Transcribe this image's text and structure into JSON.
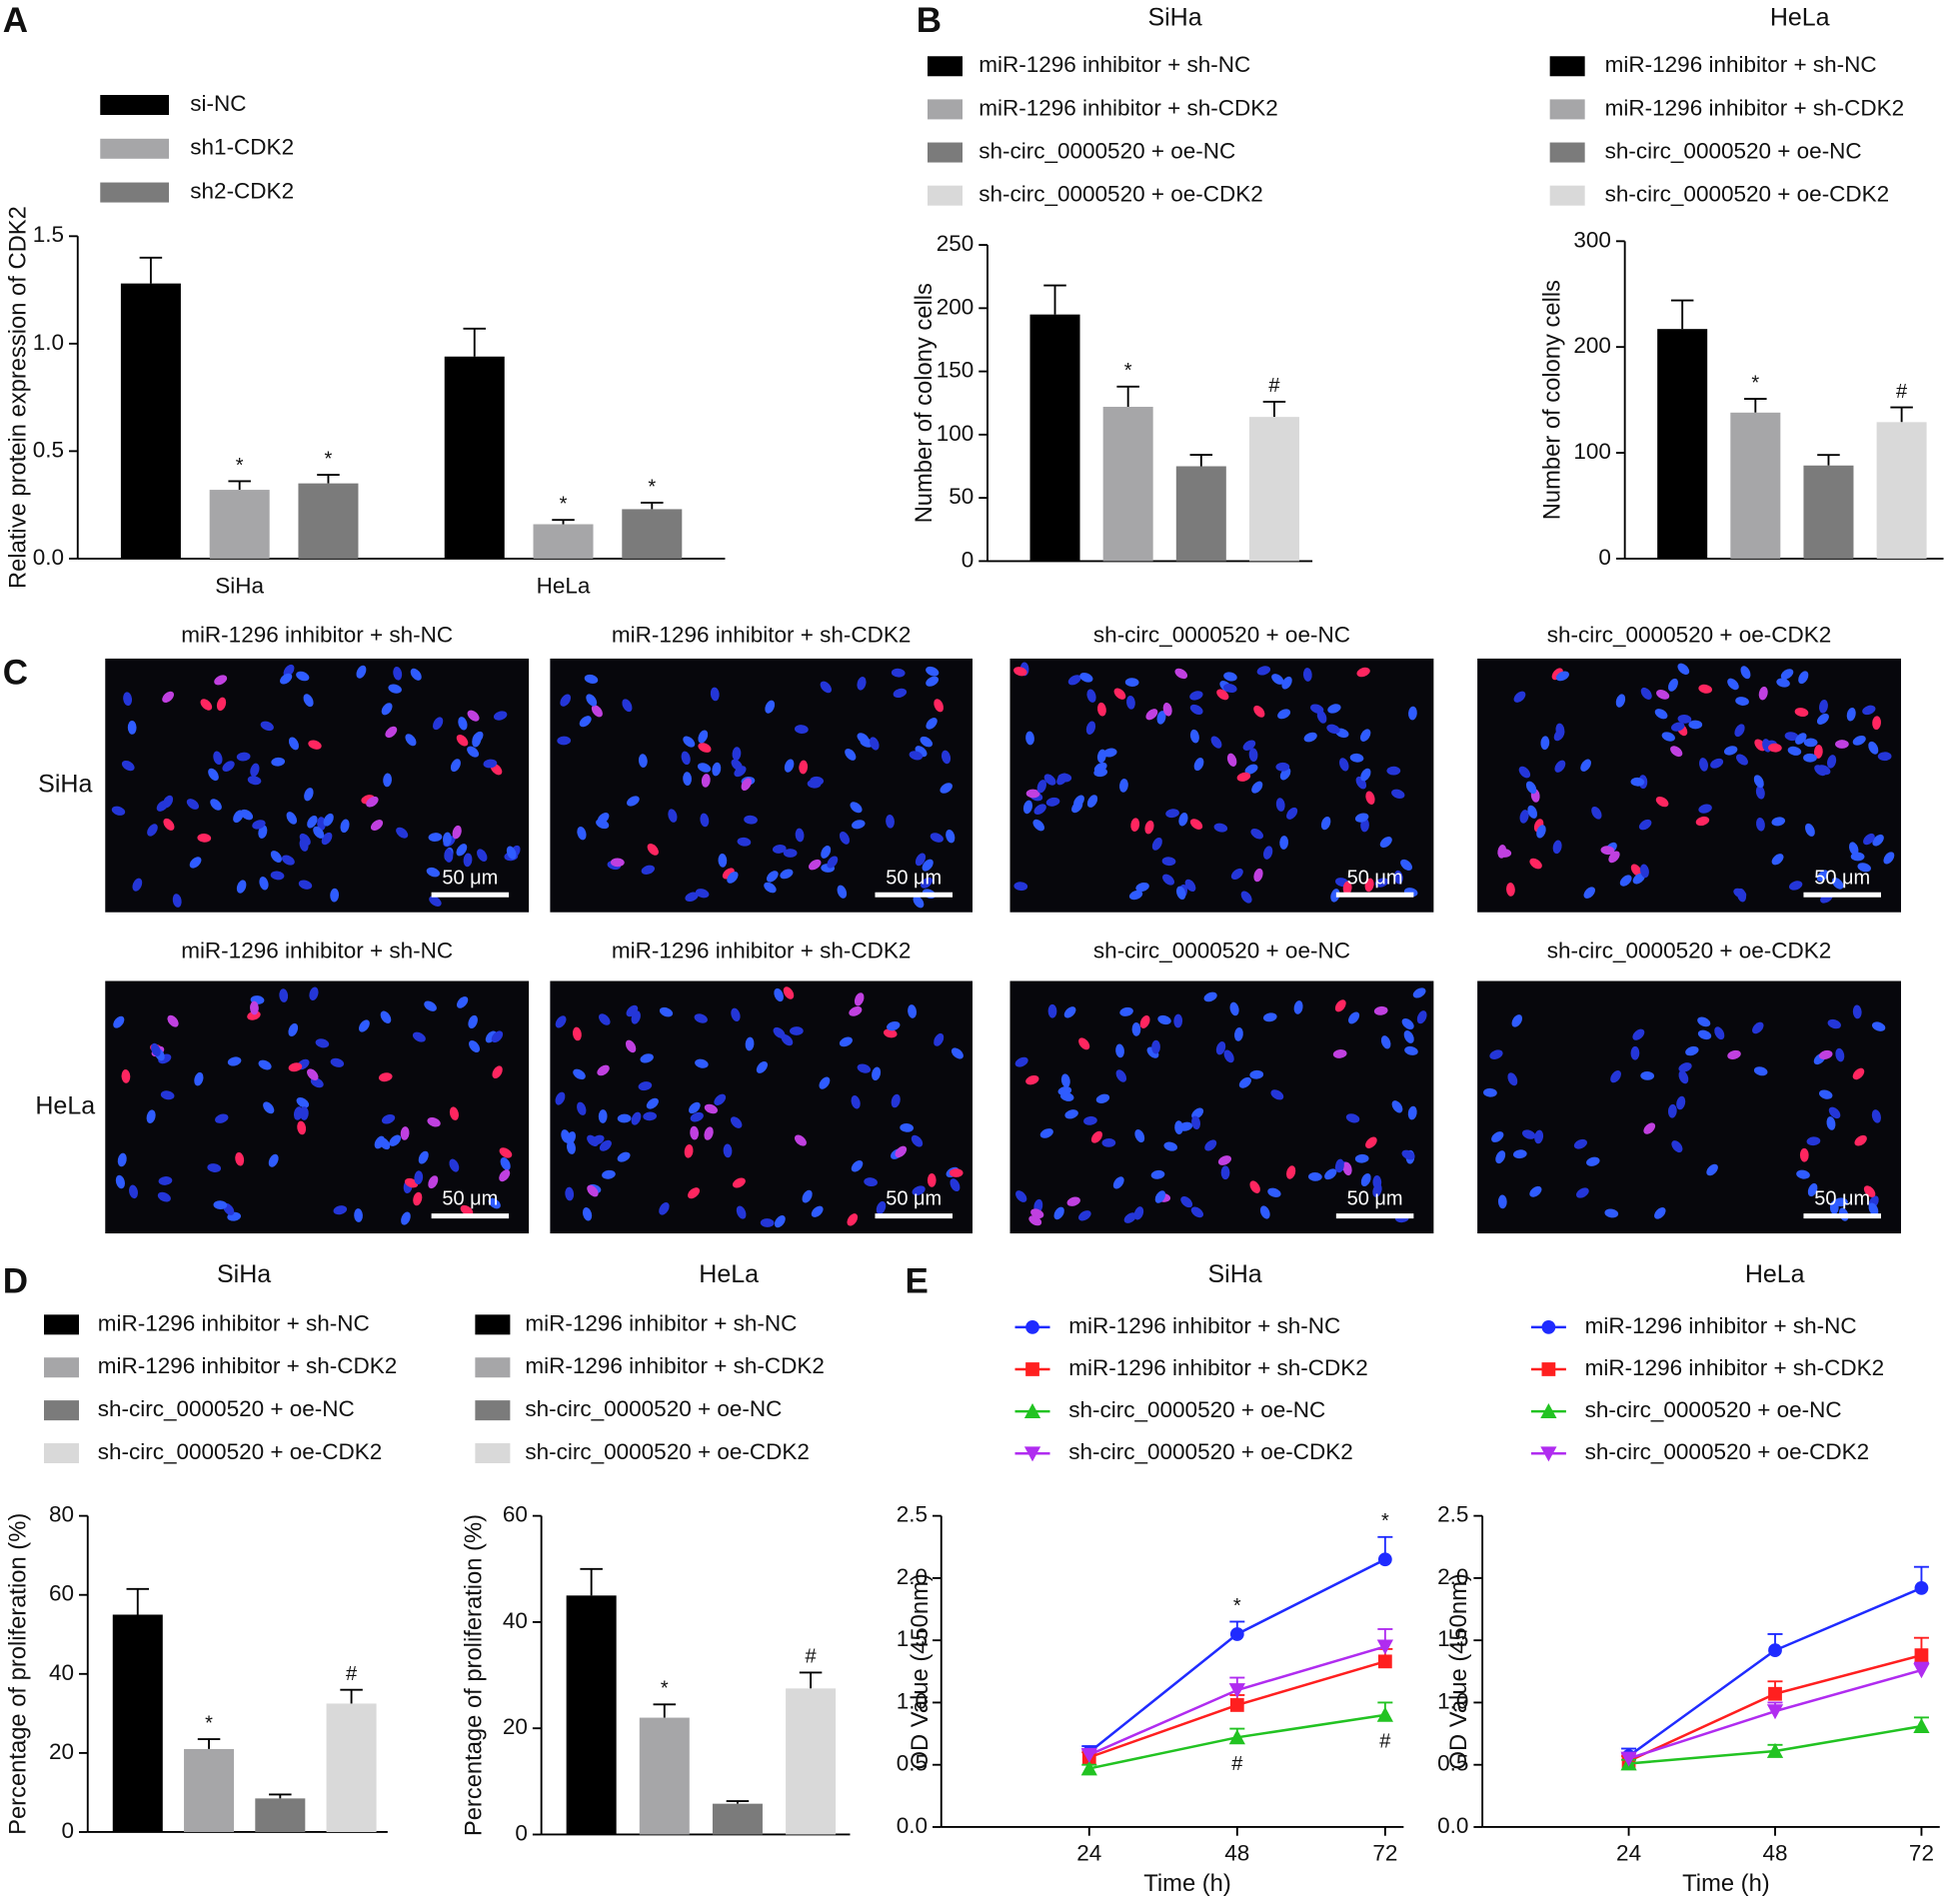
{
  "figure": {
    "panel_labels": [
      "A",
      "B",
      "C",
      "D",
      "E"
    ],
    "micrographs": {
      "columns": [
        "miR-1296 inhibitor + sh-NC",
        "miR-1296 inhibitor + sh-CDK2",
        "sh-circ_0000520 + oe-NC",
        "sh-circ_0000520 + oe-CDK2"
      ],
      "rows": [
        "SiHa",
        "HeLa"
      ],
      "scale_bar": "50 μm"
    }
  },
  "chart_data": [
    {
      "type": "bar",
      "ylabel": "Relative protein expression of CDK2",
      "categories": [
        "SiHa",
        "HeLa"
      ],
      "series": [
        {
          "name": "si-NC",
          "color": "#000000",
          "values": [
            1.28,
            0.94
          ],
          "errors": [
            0.12,
            0.13
          ]
        },
        {
          "name": "sh1-CDK2",
          "color": "#a6a6a8",
          "values": [
            0.32,
            0.16
          ],
          "errors": [
            0.04,
            0.02
          ],
          "marks": [
            "*",
            "*"
          ]
        },
        {
          "name": "sh2-CDK2",
          "color": "#7b7b7b",
          "values": [
            0.35,
            0.23
          ],
          "errors": [
            0.04,
            0.03
          ],
          "marks": [
            "*",
            "*"
          ]
        }
      ],
      "ylim": [
        0,
        1.5
      ],
      "yticks": [
        {
          "value": 0,
          "label": "0.0"
        },
        0.5,
        {
          "value": 1,
          "label": "1.0"
        },
        1.5
      ]
    },
    {
      "type": "bar",
      "title": "SiHa",
      "ylabel": "Number of colony cells",
      "series": [
        {
          "name": "miR-1296 inhibitor + sh-NC",
          "color": "#000000",
          "values": [
            195
          ],
          "errors": [
            23
          ]
        },
        {
          "name": "miR-1296 inhibitor + sh-CDK2",
          "color": "#a6a6a8",
          "values": [
            122
          ],
          "errors": [
            16
          ],
          "marks": [
            "*"
          ]
        },
        {
          "name": "sh-circ_0000520 + oe-NC",
          "color": "#7b7b7b",
          "values": [
            75
          ],
          "errors": [
            9
          ]
        },
        {
          "name": "sh-circ_0000520 + oe-CDK2",
          "color": "#d9d9d9",
          "values": [
            114
          ],
          "errors": [
            12
          ],
          "marks": [
            "#"
          ]
        }
      ],
      "ylim": [
        0,
        250
      ],
      "yticks": [
        0,
        50,
        100,
        150,
        200,
        250
      ]
    },
    {
      "type": "bar",
      "title": "HeLa",
      "ylabel": "Number of colony cells",
      "series": [
        {
          "name": "miR-1296 inhibitor + sh-NC",
          "color": "#000000",
          "values": [
            217
          ],
          "errors": [
            27
          ]
        },
        {
          "name": "miR-1296 inhibitor + sh-CDK2",
          "color": "#a6a6a8",
          "values": [
            138
          ],
          "errors": [
            13
          ],
          "marks": [
            "*"
          ]
        },
        {
          "name": "sh-circ_0000520 + oe-NC",
          "color": "#7b7b7b",
          "values": [
            88
          ],
          "errors": [
            10
          ]
        },
        {
          "name": "sh-circ_0000520 + oe-CDK2",
          "color": "#d9d9d9",
          "values": [
            129
          ],
          "errors": [
            14
          ],
          "marks": [
            "#"
          ]
        }
      ],
      "ylim": [
        0,
        300
      ],
      "yticks": [
        0,
        100,
        200,
        300
      ]
    },
    {
      "type": "bar",
      "title": "SiHa",
      "ylabel": "Percentage of proliferation (%)",
      "series": [
        {
          "name": "miR-1296 inhibitor + sh-NC",
          "color": "#000000",
          "values": [
            55
          ],
          "errors": [
            6.5
          ]
        },
        {
          "name": "miR-1296 inhibitor + sh-CDK2",
          "color": "#a6a6a8",
          "values": [
            21
          ],
          "errors": [
            2.5
          ],
          "marks": [
            "*"
          ]
        },
        {
          "name": "sh-circ_0000520 + oe-NC",
          "color": "#7b7b7b",
          "values": [
            8.5
          ],
          "errors": [
            1
          ]
        },
        {
          "name": "sh-circ_0000520 + oe-CDK2",
          "color": "#d9d9d9",
          "values": [
            32.5
          ],
          "errors": [
            3.5
          ],
          "marks": [
            "#"
          ]
        }
      ],
      "ylim": [
        0,
        80
      ],
      "yticks": [
        0,
        20,
        40,
        60,
        80
      ]
    },
    {
      "type": "bar",
      "title": "HeLa",
      "ylabel": "Percentage of proliferation (%)",
      "series": [
        {
          "name": "miR-1296 inhibitor + sh-NC",
          "color": "#000000",
          "values": [
            45
          ],
          "errors": [
            5
          ]
        },
        {
          "name": "miR-1296 inhibitor + sh-CDK2",
          "color": "#a6a6a8",
          "values": [
            22
          ],
          "errors": [
            2.5
          ],
          "marks": [
            "*"
          ]
        },
        {
          "name": "sh-circ_0000520 + oe-NC",
          "color": "#7b7b7b",
          "values": [
            5.8
          ],
          "errors": [
            0.5
          ]
        },
        {
          "name": "sh-circ_0000520 + oe-CDK2",
          "color": "#d9d9d9",
          "values": [
            27.5
          ],
          "errors": [
            3
          ],
          "marks": [
            "#"
          ]
        }
      ],
      "ylim": [
        0,
        60
      ],
      "yticks": [
        0,
        20,
        40,
        60
      ]
    },
    {
      "type": "line",
      "title": "SiHa",
      "xlabel": "Time (h)",
      "ylabel": "OD Value (450nm)",
      "x": [
        24,
        48,
        72
      ],
      "xlim": [
        0,
        75
      ],
      "xticks": [
        24,
        48,
        72
      ],
      "series": [
        {
          "name": "miR-1296 inhibitor + sh-NC",
          "color": "#1f2bff",
          "marker": "circle",
          "values": [
            0.6,
            1.55,
            2.15
          ],
          "errors": [
            0.05,
            0.1,
            0.18
          ],
          "marks": [
            null,
            "*",
            "*"
          ]
        },
        {
          "name": "miR-1296 inhibitor + sh-CDK2",
          "color": "#ff1f1f",
          "marker": "square",
          "values": [
            0.56,
            0.98,
            1.33
          ],
          "errors": [
            0.04,
            0.08,
            0.1
          ]
        },
        {
          "name": "sh-circ_0000520 + oe-NC",
          "color": "#22c322",
          "marker": "triangle-up",
          "values": [
            0.47,
            0.72,
            0.9
          ],
          "errors": [
            0.03,
            0.07,
            0.1
          ],
          "marks": [
            null,
            "#",
            "#"
          ],
          "marks_position": "below"
        },
        {
          "name": "sh-circ_0000520 + oe-CDK2",
          "color": "#b02cf0",
          "marker": "triangle-down",
          "values": [
            0.58,
            1.1,
            1.45
          ],
          "errors": [
            0.04,
            0.1,
            0.14
          ]
        }
      ],
      "ylim": [
        0,
        2.5
      ],
      "yticks": [
        {
          "value": 0,
          "label": "0.0"
        },
        0.5,
        {
          "value": 1,
          "label": "1.0"
        },
        1.5,
        {
          "value": 2,
          "label": "2.0"
        },
        2.5
      ]
    },
    {
      "type": "line",
      "title": "HeLa",
      "xlabel": "Time (h)",
      "ylabel": "OD Value (450nm)",
      "x": [
        24,
        48,
        72
      ],
      "xlim": [
        0,
        75
      ],
      "xticks": [
        24,
        48,
        72
      ],
      "series": [
        {
          "name": "miR-1296 inhibitor + sh-NC",
          "color": "#1f2bff",
          "marker": "circle",
          "values": [
            0.57,
            1.42,
            1.92
          ],
          "errors": [
            0.06,
            0.13,
            0.17
          ]
        },
        {
          "name": "miR-1296 inhibitor + sh-CDK2",
          "color": "#ff1f1f",
          "marker": "square",
          "values": [
            0.53,
            1.07,
            1.38
          ],
          "errors": [
            0.04,
            0.1,
            0.14
          ]
        },
        {
          "name": "sh-circ_0000520 + oe-NC",
          "color": "#22c322",
          "marker": "triangle-up",
          "values": [
            0.51,
            0.61,
            0.81
          ],
          "errors": [
            0.03,
            0.05,
            0.07
          ]
        },
        {
          "name": "sh-circ_0000520 + oe-CDK2",
          "color": "#b02cf0",
          "marker": "triangle-down",
          "values": [
            0.55,
            0.93,
            1.26
          ],
          "errors": [
            0.04,
            0.07,
            0.06
          ]
        }
      ],
      "ylim": [
        0,
        2.5
      ],
      "yticks": [
        {
          "value": 0,
          "label": "0.0"
        },
        0.5,
        {
          "value": 1,
          "label": "1.0"
        },
        1.5,
        {
          "value": 2,
          "label": "2.0"
        },
        2.5
      ]
    }
  ]
}
